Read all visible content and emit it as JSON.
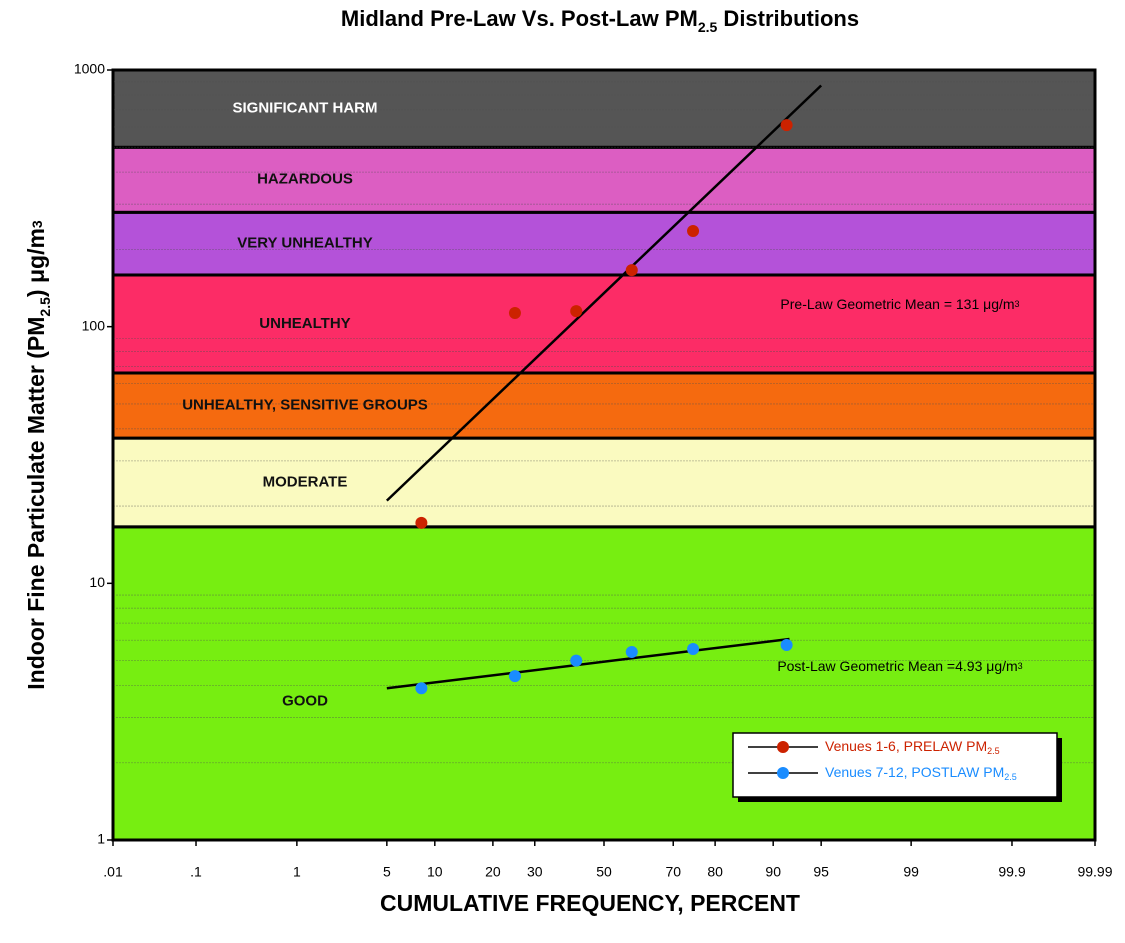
{
  "chart_data": {
    "type": "probability-scatter",
    "title": [
      "Midland Pre-Law Vs. Post-Law PM",
      {
        "text": "2.5",
        "shift": "sub"
      },
      " Distributions"
    ],
    "x_label": "CUMULATIVE FREQUENCY, PERCENT",
    "y_label": [
      "Indoor Fine Particulate Matter (PM",
      {
        "text": "2.5",
        "shift": "sub"
      },
      ")  μg/m",
      {
        "text": "3",
        "shift": "sup"
      }
    ],
    "xscale": "probability",
    "yscale": "log",
    "xlim": [
      0.01,
      99.99
    ],
    "xticks": [
      {
        "value": 0.01,
        "label": ".01"
      },
      {
        "value": 0.1,
        "label": ".1"
      },
      1,
      5,
      10,
      20,
      30,
      50,
      70,
      80,
      90,
      95,
      99,
      99.9,
      99.99
    ],
    "ylim": [
      1,
      1000
    ],
    "yticks": [
      1,
      10,
      100,
      1000
    ],
    "minor_yticks": [
      2,
      3,
      4,
      5,
      6,
      7,
      8,
      9,
      20,
      30,
      40,
      50,
      60,
      70,
      80,
      90,
      200,
      300,
      400,
      500,
      600,
      700,
      800,
      900
    ],
    "bands": [
      {
        "label": "GOOD",
        "color": "#77ee11",
        "range": [
          1,
          16.6
        ]
      },
      {
        "label": "MODERATE",
        "color": "#fafac0",
        "range": [
          16.6,
          36.8
        ]
      },
      {
        "label": "UNHEALTHY, SENSITIVE GROUPS",
        "color": "#f56a0f",
        "range": [
          36.8,
          66
        ]
      },
      {
        "label": "UNHEALTHY",
        "color": "#fc2c66",
        "range": [
          66,
          159
        ]
      },
      {
        "label": "VERY UNHEALTHY",
        "color": "#b452d9",
        "range": [
          159,
          279
        ]
      },
      {
        "label": "HAZARDOUS",
        "color": "#dc5ec2",
        "range": [
          279,
          500
        ]
      },
      {
        "label": "SIGNIFICANT HARM",
        "color": "#555555",
        "range": [
          500,
          1000
        ]
      }
    ],
    "series": [
      {
        "name": [
          "Venues 1-6, PRELAW PM",
          {
            "text": "2.5",
            "shift": "sub"
          }
        ],
        "color": "#cc2200",
        "x": [
          8.33,
          25,
          41.67,
          58.33,
          75,
          91.67
        ],
        "values": [
          17.2,
          113,
          115,
          166,
          236,
          610
        ],
        "fit": {
          "x": [
            5,
            95
          ],
          "values": [
            21,
            870
          ]
        }
      },
      {
        "name": [
          "Venues 7-12, POSTLAW PM",
          {
            "text": "2.5",
            "shift": "sub"
          }
        ],
        "color": "#1a8cff",
        "x": [
          8.33,
          25,
          41.67,
          58.33,
          75,
          91.67
        ],
        "values": [
          3.9,
          4.35,
          5.0,
          5.4,
          5.55,
          5.75
        ],
        "fit": {
          "x": [
            5,
            92
          ],
          "values": [
            3.9,
            6.07
          ]
        }
      }
    ],
    "annotations": [
      [
        "Pre-Law Geometric Mean = 131  μg/m",
        {
          "text": "3",
          "shift": "sup"
        }
      ],
      [
        "Post-Law Geometric Mean =4.93 μg/m",
        {
          "text": "3",
          "shift": "sup"
        }
      ]
    ],
    "legend": "lower right"
  }
}
